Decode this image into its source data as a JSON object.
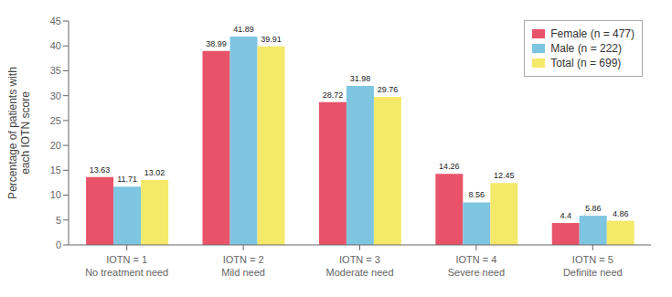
{
  "chart_data": {
    "type": "bar",
    "categories": [
      "IOTN = 1\nNo treatment need",
      "IOTN = 2\nMild need",
      "IOTN = 3\nModerate need",
      "IOTN = 4\nSevere need",
      "IOTN = 5\nDefinite need"
    ],
    "series": [
      {
        "name": "Female (n = 477)",
        "color": "#E8536A",
        "values": [
          13.63,
          38.99,
          28.72,
          14.26,
          4.4
        ]
      },
      {
        "name": "Male (n = 222)",
        "color": "#7DC5E0",
        "values": [
          11.71,
          41.89,
          31.98,
          8.56,
          5.86
        ]
      },
      {
        "name": "Total (n = 699)",
        "color": "#F5E96A",
        "values": [
          13.02,
          39.91,
          29.76,
          12.45,
          4.86
        ]
      }
    ],
    "ylabel": "Percentage of patients with\neach IOTN score",
    "ylim": [
      0,
      45
    ],
    "yticks": [
      0,
      5,
      10,
      15,
      20,
      25,
      30,
      35,
      40,
      45
    ],
    "grid": false,
    "legend": "upper right",
    "data_labels": true
  }
}
